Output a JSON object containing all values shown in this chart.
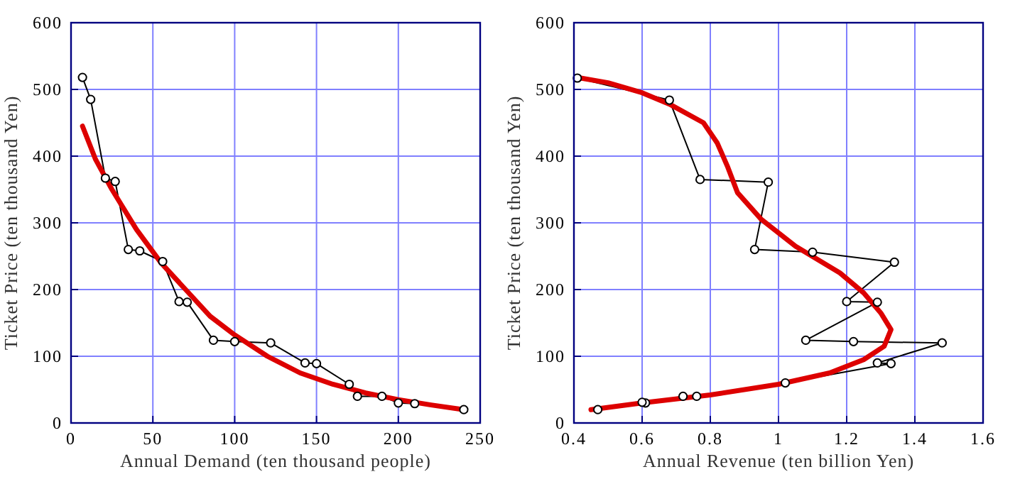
{
  "chart_data": [
    {
      "type": "line",
      "xlabel": "Annual Demand (ten thousand people)",
      "ylabel": "Ticket Price (ten thousand Yen)",
      "xlim": [
        0,
        250
      ],
      "xticks": [
        0,
        50,
        100,
        150,
        200,
        250
      ],
      "ylim": [
        0,
        600
      ],
      "yticks": [
        0,
        100,
        200,
        300,
        400,
        500,
        600
      ],
      "grid": true,
      "series": [
        {
          "color": "#000000",
          "marker": "circle",
          "x": [
            7,
            12,
            21,
            27,
            35,
            42,
            56,
            66,
            71,
            87,
            100,
            122,
            143,
            150,
            170,
            175,
            190,
            200,
            210,
            240
          ],
          "values": [
            518,
            485,
            367,
            362,
            260,
            258,
            242,
            182,
            181,
            124,
            122,
            120,
            90,
            89,
            58,
            40,
            40,
            30,
            29,
            20
          ]
        },
        {
          "color": "#dd0000",
          "marker": "none",
          "x": [
            7,
            15,
            25,
            40,
            55,
            70,
            85,
            100,
            120,
            140,
            160,
            180,
            200,
            220,
            240
          ],
          "values": [
            445,
            395,
            350,
            290,
            240,
            200,
            160,
            132,
            100,
            75,
            58,
            45,
            35,
            27,
            20
          ]
        }
      ]
    },
    {
      "type": "line",
      "xlabel": "Annual Revenue (ten billion Yen)",
      "ylabel": "Ticket Price (ten thousand Yen)",
      "xlim": [
        0.4,
        1.6
      ],
      "xticks": [
        0.4,
        0.6,
        0.8,
        1,
        1.2,
        1.4,
        1.6
      ],
      "ylim": [
        0,
        600
      ],
      "yticks": [
        0,
        100,
        200,
        300,
        400,
        500,
        600
      ],
      "grid": true,
      "series": [
        {
          "color": "#000000",
          "marker": "circle",
          "x": [
            0.41,
            0.68,
            0.77,
            0.97,
            0.93,
            1.1,
            1.34,
            1.2,
            1.29,
            1.08,
            1.22,
            1.48,
            1.29,
            1.33,
            1.02,
            0.76,
            0.72,
            0.61,
            0.6,
            0.47
          ],
          "values": [
            517,
            484,
            365,
            361,
            260,
            256,
            241,
            182,
            181,
            124,
            122,
            120,
            90,
            89,
            60,
            40,
            40,
            30,
            31,
            20
          ]
        },
        {
          "color": "#dd0000",
          "marker": "none",
          "x": [
            0.45,
            0.6,
            0.8,
            1.0,
            1.15,
            1.25,
            1.31,
            1.33,
            1.3,
            1.25,
            1.18,
            1.05,
            0.95,
            0.88,
            0.85,
            0.82,
            0.78,
            0.68,
            0.6,
            0.5,
            0.42
          ],
          "values": [
            20,
            30,
            42,
            58,
            75,
            95,
            115,
            140,
            165,
            195,
            225,
            265,
            305,
            345,
            385,
            420,
            450,
            478,
            495,
            510,
            517
          ]
        }
      ]
    }
  ]
}
